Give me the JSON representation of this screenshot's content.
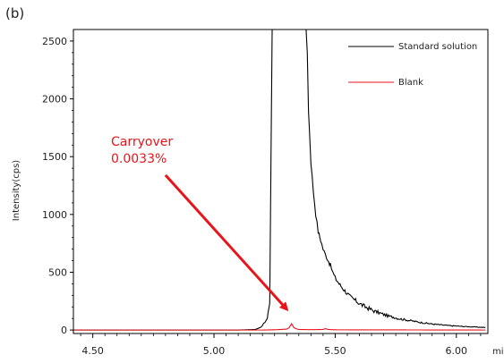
{
  "panel_label": "(b)",
  "chart_data": {
    "type": "line",
    "title": "",
    "xlabel": "min",
    "ylabel": "Intensity(cps)",
    "xlim": [
      4.42,
      6.13
    ],
    "ylim": [
      -30,
      2600
    ],
    "x_ticks": [
      4.5,
      5.0,
      5.5,
      6.0
    ],
    "x_tick_labels": [
      "4.50",
      "5.00",
      "5.50",
      "6.00"
    ],
    "y_ticks": [
      0,
      500,
      1000,
      1500,
      2000,
      2500
    ],
    "y_tick_labels": [
      "0",
      "500",
      "1000",
      "1500",
      "2000",
      "2500"
    ],
    "grid": false,
    "legend_position": "top-right",
    "series": [
      {
        "name": "Standard solution",
        "color": "#000000",
        "x": [
          4.42,
          4.9,
          5.0,
          5.1,
          5.17,
          5.19,
          5.2,
          5.21,
          5.22,
          5.23,
          5.24,
          5.245,
          5.25,
          5.26,
          5.3,
          5.35,
          5.38,
          5.385,
          5.39,
          5.4,
          5.41,
          5.42,
          5.43,
          5.44,
          5.45,
          5.46,
          5.47,
          5.48,
          5.49,
          5.5,
          5.52,
          5.54,
          5.56,
          5.58,
          5.6,
          5.62,
          5.64,
          5.66,
          5.68,
          5.7,
          5.72,
          5.74,
          5.76,
          5.78,
          5.8,
          5.82,
          5.84,
          5.86,
          5.88,
          5.9,
          5.92,
          5.94,
          5.96,
          5.98,
          6.0,
          6.02,
          6.04,
          6.06,
          6.08,
          6.1,
          6.12
        ],
        "y": [
          0,
          0,
          0,
          0,
          5,
          20,
          40,
          70,
          100,
          250,
          2600,
          2600,
          2600,
          2600,
          2600,
          2600,
          2600,
          2400,
          1900,
          1450,
          1200,
          1000,
          850,
          780,
          700,
          650,
          610,
          560,
          500,
          450,
          390,
          340,
          290,
          260,
          230,
          205,
          185,
          165,
          150,
          135,
          120,
          112,
          100,
          92,
          85,
          78,
          70,
          63,
          58,
          52,
          48,
          44,
          40,
          37,
          35,
          32,
          30,
          28,
          26,
          24,
          22
        ]
      },
      {
        "name": "Blank",
        "color": "#e8141a",
        "x": [
          4.42,
          4.9,
          5.2,
          5.26,
          5.3,
          5.31,
          5.32,
          5.33,
          5.34,
          5.35,
          5.4,
          5.45,
          5.46,
          5.47,
          5.5,
          6.12
        ],
        "y": [
          0,
          0,
          0,
          3,
          8,
          20,
          55,
          20,
          10,
          5,
          3,
          5,
          12,
          5,
          2,
          0
        ]
      }
    ],
    "annotations": [
      {
        "text": "Carryover",
        "color": "#e8141a"
      },
      {
        "text": "0.0033%",
        "color": "#e8141a"
      }
    ],
    "arrow": {
      "from": [
        4.8,
        1340
      ],
      "to": [
        5.3,
        180
      ],
      "color": "#e8141a"
    }
  }
}
